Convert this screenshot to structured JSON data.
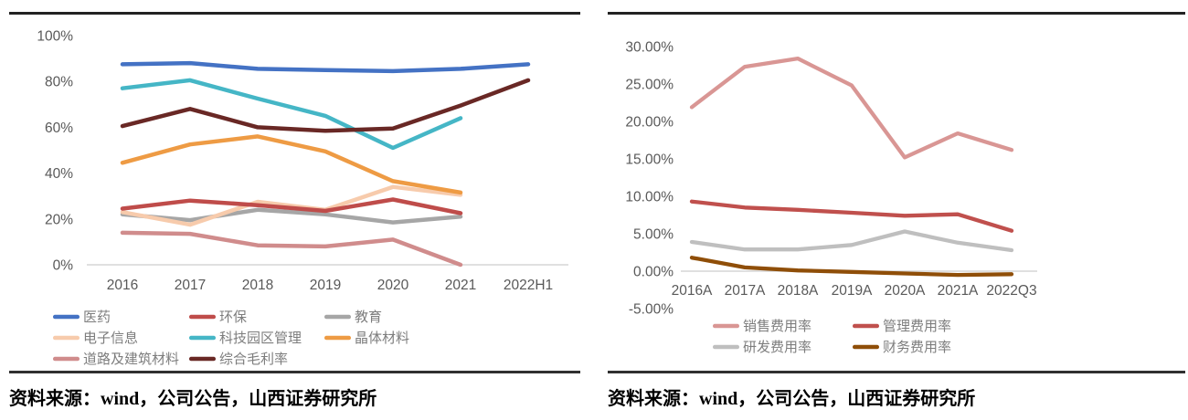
{
  "page": {
    "background": "#ffffff",
    "rule_color": "#222222"
  },
  "panels": [
    {
      "source_label": "资料来源：wind，公司公告，山西证券研究所"
    },
    {
      "source_label": "资料来源：wind，公司公告，山西证券研究所"
    }
  ],
  "chart_data": [
    {
      "type": "line",
      "title": "",
      "xlabel": "",
      "ylabel": "",
      "categories": [
        "2016",
        "2017",
        "2018",
        "2019",
        "2020",
        "2021",
        "2022H1"
      ],
      "ylim": [
        0,
        100
      ],
      "grid": false,
      "legend_position": "bottom",
      "axis_label_color": "#595959",
      "legend_text_color": "#7d7d7d",
      "axis_line_color": "#d6d6d6",
      "y_ticks": [
        {
          "label": "100%",
          "value": 100
        },
        {
          "label": "80%",
          "value": 80
        },
        {
          "label": "60%",
          "value": 60
        },
        {
          "label": "40%",
          "value": 40
        },
        {
          "label": "20%",
          "value": 20
        },
        {
          "label": "0%",
          "value": 0
        }
      ],
      "series": [
        {
          "name": "医药",
          "color": "#4472c4",
          "values": [
            87.5,
            88,
            85.5,
            85,
            84.5,
            85.5,
            87.5
          ]
        },
        {
          "name": "环保",
          "color": "#bf4c4a",
          "values": [
            24.5,
            28,
            26,
            23.5,
            28.5,
            22.5,
            null
          ]
        },
        {
          "name": "教育",
          "color": "#a6a6a6",
          "values": [
            22,
            19.5,
            24,
            22,
            18.5,
            21,
            null
          ]
        },
        {
          "name": "电子信息",
          "color": "#f7cbac",
          "values": [
            23,
            17.5,
            27.5,
            24,
            34,
            30.5,
            null
          ]
        },
        {
          "name": "科技园区管理",
          "color": "#45b6c6",
          "values": [
            77,
            80.5,
            72.5,
            65,
            51,
            64,
            null
          ]
        },
        {
          "name": "晶体材料",
          "color": "#ee9b44",
          "values": [
            44.5,
            52.5,
            56,
            49.5,
            36.5,
            31.5,
            null
          ]
        },
        {
          "name": "道路及建筑材料",
          "color": "#d08c8c",
          "values": [
            14,
            13.5,
            8.5,
            8,
            11,
            0,
            null
          ]
        },
        {
          "name": "综合毛利率",
          "color": "#692825",
          "values": [
            60.5,
            68,
            60,
            58.5,
            59.5,
            69.5,
            80.5
          ]
        }
      ]
    },
    {
      "type": "line",
      "title": "",
      "xlabel": "",
      "ylabel": "",
      "categories": [
        "2016A",
        "2017A",
        "2018A",
        "2019A",
        "2020A",
        "2021A",
        "2022Q3"
      ],
      "ylim": [
        -5,
        30
      ],
      "grid": false,
      "legend_position": "bottom",
      "axis_label_color": "#595959",
      "legend_text_color": "#7d7d7d",
      "axis_line_color": "#d6d6d6",
      "y_ticks": [
        {
          "label": "30.00%",
          "value": 30
        },
        {
          "label": "25.00%",
          "value": 25
        },
        {
          "label": "20.00%",
          "value": 20
        },
        {
          "label": "15.00%",
          "value": 15
        },
        {
          "label": "10.00%",
          "value": 10
        },
        {
          "label": "5.00%",
          "value": 5
        },
        {
          "label": "0.00%",
          "value": 0
        },
        {
          "label": "-5.00%",
          "value": -5
        }
      ],
      "series": [
        {
          "name": "销售费用率",
          "color": "#d99694",
          "values": [
            21.9,
            27.3,
            28.4,
            24.8,
            15.2,
            18.4,
            16.2
          ]
        },
        {
          "name": "管理费用率",
          "color": "#c0504d",
          "values": [
            9.3,
            8.5,
            8.2,
            7.8,
            7.4,
            7.6,
            5.4
          ]
        },
        {
          "name": "研发费用率",
          "color": "#bfbfbf",
          "values": [
            3.9,
            2.9,
            2.9,
            3.5,
            5.3,
            3.8,
            2.8
          ]
        },
        {
          "name": "财务费用率",
          "color": "#8f4e08",
          "values": [
            1.8,
            0.5,
            0.1,
            -0.1,
            -0.3,
            -0.5,
            -0.4
          ]
        }
      ]
    }
  ]
}
